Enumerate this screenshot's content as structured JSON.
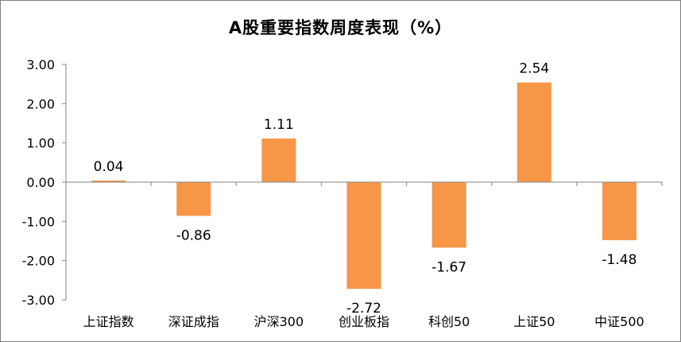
{
  "chart_data": {
    "type": "bar",
    "title": "A股重要指数周度表现（%）",
    "xlabel": "",
    "ylabel": "",
    "categories": [
      "上证指数",
      "深证成指",
      "沪深300",
      "创业板指",
      "科创50",
      "上证50",
      "中证500"
    ],
    "values": [
      0.04,
      -0.86,
      1.11,
      -2.72,
      -1.67,
      2.54,
      -1.48
    ],
    "value_labels": [
      "0.04",
      "-0.86",
      "1.11",
      "-2.72",
      "-1.67",
      "2.54",
      "-1.48"
    ],
    "y_ticks": [
      "3.00",
      "2.00",
      "1.00",
      "0.00",
      "-1.00",
      "-2.00",
      "-3.00"
    ],
    "y_tick_values": [
      3,
      2,
      1,
      0,
      -1,
      -2,
      -3
    ],
    "ylim": [
      -3,
      3
    ],
    "grid": false,
    "legend": "none",
    "bar_color": "#f79646"
  }
}
